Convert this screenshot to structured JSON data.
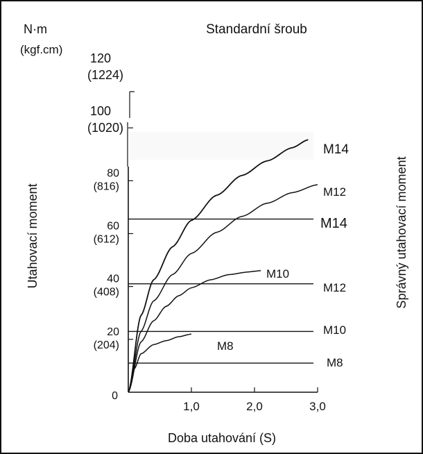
{
  "chart_data": {
    "type": "line",
    "title": "Standardní šroub",
    "units": {
      "primary": "N·m",
      "secondary": "(kgf.cm)"
    },
    "xlabel": "Doba utahování (S)",
    "ylabel": "Utahovací moment",
    "right_label": "Správný utahovací moment",
    "xlim": [
      0,
      3.0
    ],
    "ylim": [
      0,
      120
    ],
    "x_ticks": [
      {
        "value": 1.0,
        "label": "1,0"
      },
      {
        "value": 2.0,
        "label": "2,0"
      },
      {
        "value": 3.0,
        "label": "3,0"
      }
    ],
    "y_ticks": [
      {
        "value": 0,
        "nm": "0",
        "kgf": ""
      },
      {
        "value": 20,
        "nm": "20",
        "kgf": "(204)"
      },
      {
        "value": 40,
        "nm": "40",
        "kgf": "(408)"
      },
      {
        "value": 60,
        "nm": "60",
        "kgf": "(612)"
      },
      {
        "value": 80,
        "nm": "80",
        "kgf": "(816)"
      },
      {
        "value": 100,
        "nm": "100",
        "kgf": "(1020)"
      },
      {
        "value": 120,
        "nm": "120",
        "kgf": "(1224)"
      }
    ],
    "series": [
      {
        "name": "M8",
        "x": [
          0,
          0.1,
          0.2,
          0.4,
          0.6,
          0.8,
          1.0
        ],
        "y": [
          0,
          9.0,
          14.5,
          18.0,
          19.5,
          21.0,
          22.0
        ]
      },
      {
        "name": "M10",
        "x": [
          0,
          0.2,
          0.4,
          0.6,
          0.8,
          1.0,
          1.3,
          1.6,
          1.9,
          2.1
        ],
        "y": [
          0,
          19.0,
          27.0,
          32.5,
          36.5,
          39.5,
          42.5,
          44.5,
          45.5,
          46.0
        ]
      },
      {
        "name": "M12",
        "x": [
          0,
          0.2,
          0.4,
          0.7,
          1.0,
          1.4,
          1.8,
          2.2,
          2.6,
          3.0
        ],
        "y": [
          0,
          23.0,
          34.5,
          44.5,
          52.5,
          60.5,
          66.5,
          71.5,
          75.5,
          78.5
        ]
      },
      {
        "name": "M14",
        "x": [
          0,
          0.2,
          0.4,
          0.7,
          1.0,
          1.4,
          1.8,
          2.2,
          2.6,
          2.85
        ],
        "y": [
          0,
          29.0,
          42.5,
          55.0,
          65.0,
          74.5,
          82.0,
          87.5,
          92.5,
          95.5
        ]
      }
    ],
    "reference_lines": [
      {
        "name": "M14",
        "y": 65.5
      },
      {
        "name": "M12",
        "y": 41.0
      },
      {
        "name": "M10",
        "y": 23.0
      },
      {
        "name": "M8",
        "y": 11.0
      }
    ]
  }
}
